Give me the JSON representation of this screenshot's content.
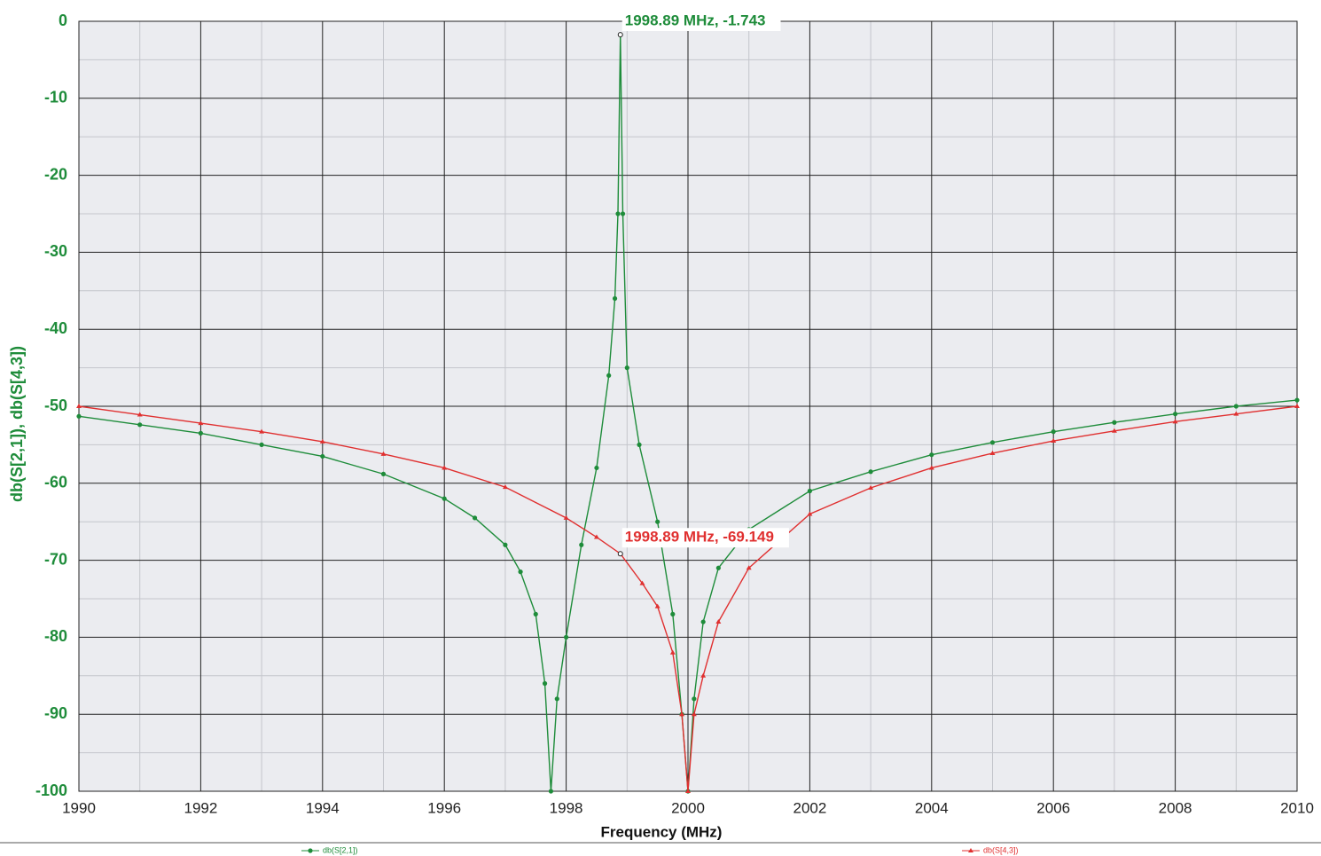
{
  "chart_data": {
    "type": "line",
    "xlabel": "Frequency (MHz)",
    "ylabel": "db(S[2,1]), db(S[4,3])",
    "xlim": [
      1990,
      2010
    ],
    "ylim": [
      -100,
      0
    ],
    "xticks": [
      1990,
      1992,
      1994,
      1996,
      1998,
      2000,
      2002,
      2004,
      2006,
      2008,
      2010
    ],
    "yticks": [
      0,
      -10,
      -20,
      -30,
      -40,
      -50,
      -60,
      -70,
      -80,
      -90,
      -100
    ],
    "minor_xticks": [
      1991,
      1993,
      1995,
      1997,
      1999,
      2001,
      2003,
      2005,
      2007,
      2009
    ],
    "minor_yticks": [
      -5,
      -15,
      -25,
      -35,
      -45,
      -55,
      -65,
      -75,
      -85,
      -95
    ],
    "grid": true,
    "series": [
      {
        "name": "db(S[2,1])",
        "color": "#1e8c3a",
        "marker": "circle",
        "x": [
          1990,
          1991,
          1992,
          1993,
          1994,
          1995,
          1996,
          1996.5,
          1997,
          1997.25,
          1997.5,
          1997.65,
          1997.75,
          1997.85,
          1998,
          1998.25,
          1998.5,
          1998.7,
          1998.8,
          1998.85,
          1998.89,
          1998.93,
          1999,
          1999.2,
          1999.5,
          1999.75,
          1999.9,
          2000,
          2000.1,
          2000.25,
          2000.5,
          2001,
          2002,
          2003,
          2004,
          2005,
          2006,
          2007,
          2008,
          2009,
          2010
        ],
        "values": [
          -51.3,
          -52.4,
          -53.5,
          -55,
          -56.5,
          -58.8,
          -62,
          -64.5,
          -68,
          -71.5,
          -77,
          -86,
          -100,
          -88,
          -80,
          -68,
          -58,
          -46,
          -36,
          -25,
          -1.743,
          -25,
          -45,
          -55,
          -65,
          -77,
          -90,
          -100,
          -88,
          -78,
          -71,
          -66,
          -61,
          -58.5,
          -56.3,
          -54.7,
          -53.3,
          -52.1,
          -51,
          -50,
          -49.2
        ]
      },
      {
        "name": "db(S[4,3])",
        "color": "#e03030",
        "marker": "triangle",
        "x": [
          1990,
          1991,
          1992,
          1993,
          1994,
          1995,
          1996,
          1997,
          1998,
          1998.5,
          1998.89,
          1999.25,
          1999.5,
          1999.75,
          1999.9,
          2000,
          2000.1,
          2000.25,
          2000.5,
          2001,
          2002,
          2003,
          2004,
          2005,
          2006,
          2007,
          2008,
          2009,
          2010
        ],
        "values": [
          -50,
          -51.1,
          -52.2,
          -53.3,
          -54.6,
          -56.2,
          -58,
          -60.5,
          -64.5,
          -67,
          -69.149,
          -73,
          -76,
          -82,
          -90,
          -100,
          -90,
          -85,
          -78,
          -71,
          -64,
          -60.6,
          -58,
          -56.1,
          -54.5,
          -53.2,
          -52,
          -51,
          -50
        ]
      }
    ],
    "annotations": [
      {
        "text": "1998.89 MHz, -1.743",
        "x": 1998.89,
        "y": -1.743,
        "color": "#1e8c3a"
      },
      {
        "text": "1998.89 MHz, -69.149",
        "x": 1998.89,
        "y": -69.149,
        "color": "#e03030"
      }
    ]
  }
}
